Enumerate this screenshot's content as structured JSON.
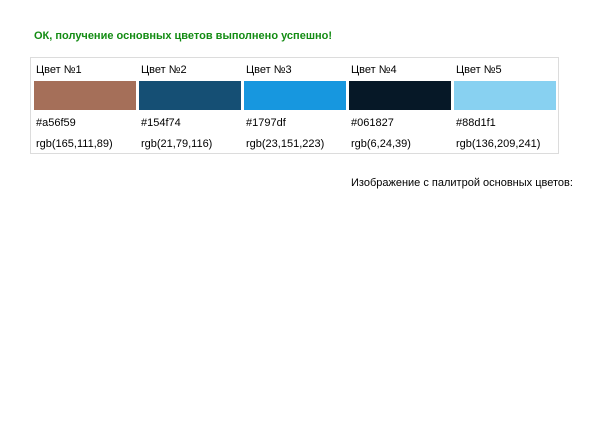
{
  "status_message": "ОК, получение основных цветов выполнено успешно!",
  "colors": [
    {
      "label": "Цвет №1",
      "hex": "#a56f59",
      "rgb": "rgb(165,111,89)"
    },
    {
      "label": "Цвет №2",
      "hex": "#154f74",
      "rgb": "rgb(21,79,116)"
    },
    {
      "label": "Цвет №3",
      "hex": "#1797df",
      "rgb": "rgb(23,151,223)"
    },
    {
      "label": "Цвет №4",
      "hex": "#061827",
      "rgb": "rgb(6,24,39)"
    },
    {
      "label": "Цвет №5",
      "hex": "#88d1f1",
      "rgb": "rgb(136,209,241)"
    }
  ],
  "image_caption": "Изображение с палитрой основных цветов:",
  "status_color": "#138c13"
}
